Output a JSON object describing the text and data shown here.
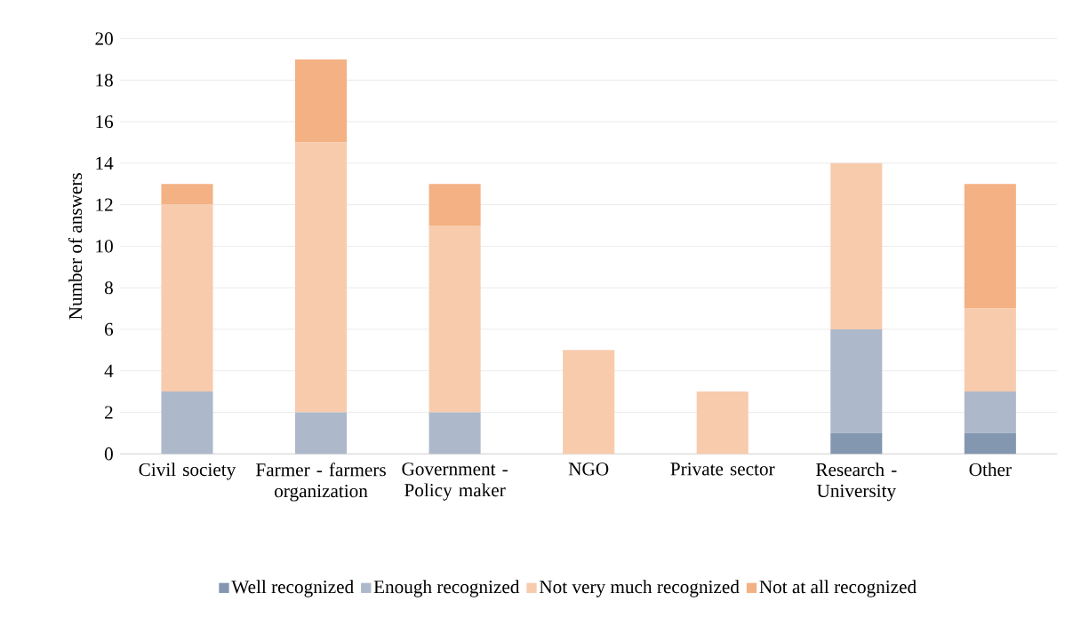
{
  "chart_data": {
    "type": "bar",
    "stacked": true,
    "ylabel": "Number of answers",
    "categories": [
      "Civil society",
      "Farmer - farmers organization",
      "Government - Policy maker",
      "NGO",
      "Private sector",
      "Research - University",
      "Other"
    ],
    "series": [
      {
        "name": "Well recognized",
        "color": "#8497b0",
        "values": [
          0,
          0,
          0,
          0,
          0,
          1,
          1
        ]
      },
      {
        "name": "Enough recognized",
        "color": "#adb9ca",
        "values": [
          3,
          2,
          2,
          0,
          0,
          5,
          2
        ]
      },
      {
        "name": "Not very much recognized",
        "color": "#f8cbad",
        "values": [
          9,
          13,
          9,
          5,
          3,
          8,
          4
        ]
      },
      {
        "name": "Not at all recognized",
        "color": "#f4b183",
        "values": [
          1,
          4,
          2,
          0,
          0,
          0,
          6
        ]
      }
    ],
    "ylim": [
      0,
      20
    ],
    "yticks": [
      0,
      2,
      4,
      6,
      8,
      10,
      12,
      14,
      16,
      18,
      20
    ],
    "grid": "y",
    "legend": "bottom"
  }
}
